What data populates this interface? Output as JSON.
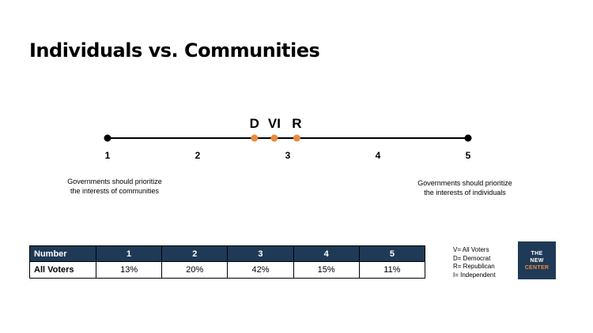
{
  "title": "Individuals vs. Communities",
  "chart_data": {
    "type": "scale",
    "axis": {
      "min": 1,
      "max": 5,
      "ticks": [
        1,
        2,
        3,
        4,
        5
      ]
    },
    "endpoints": {
      "left": [
        "Governments should prioritize",
        "the interests of communities"
      ],
      "right": [
        "Governments should prioritize",
        "the interests of individuals"
      ]
    },
    "markers": [
      {
        "label": "D",
        "value": 2.63
      },
      {
        "label": "V",
        "value": 2.85
      },
      {
        "label": "I",
        "value": 2.85
      },
      {
        "label": "R",
        "value": 3.1
      }
    ],
    "marker_points": [
      2.63,
      2.85,
      3.1
    ],
    "marker_color": "#e98a3d",
    "line_color": "#000000"
  },
  "table": {
    "columns": [
      "Number",
      "1",
      "2",
      "3",
      "4",
      "5"
    ],
    "rows": [
      {
        "label": "All Voters",
        "values": [
          "13%",
          "20%",
          "42%",
          "15%",
          "11%"
        ]
      }
    ],
    "header_color": "#1f3a56"
  },
  "legend": [
    "V= All Voters",
    "D= Democrat",
    "R= Republican",
    "I= Independent"
  ],
  "logo": {
    "line1": "THE",
    "line2": "NEW",
    "line3": "CENTER"
  }
}
